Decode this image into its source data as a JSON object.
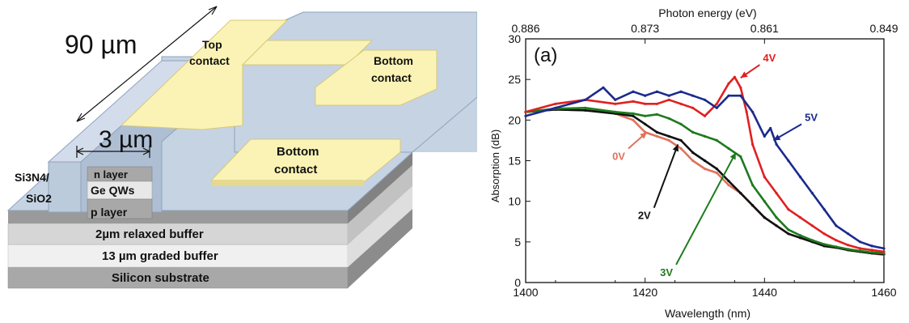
{
  "device": {
    "length_label": "90 µm",
    "width_label": "3 µm",
    "top_contact": [
      "Top",
      "contact"
    ],
    "bottom_contact_right": [
      "Bottom",
      "contact"
    ],
    "bottom_contact_front": [
      "Bottom",
      "contact"
    ],
    "cladding": [
      "Si3N4/",
      "SiO2"
    ],
    "n_layer": "n layer",
    "qw_layer": "Ge QWs",
    "p_layer": "p layer",
    "relaxed_buffer": "2µm relaxed buffer",
    "graded_buffer": "13 µm graded buffer",
    "substrate": "Silicon substrate",
    "colors": {
      "cladding": "#c6d3e3",
      "contact": "#fbf3b5",
      "dark_layer": "#9a9a9a"
    }
  },
  "chart_data": {
    "type": "line",
    "panel_label": "(a)",
    "xlabel": "Wavelength (nm)",
    "ylabel": "Absorption (dB)",
    "top_xlabel": "Photon energy (eV)",
    "xlim": [
      1400,
      1460
    ],
    "ylim": [
      0,
      30
    ],
    "x_ticks": [
      1400,
      1420,
      1440,
      1460
    ],
    "y_ticks": [
      0,
      5,
      10,
      15,
      20,
      25,
      30
    ],
    "top_ticks": [
      {
        "x": 1400,
        "label": "0.886"
      },
      {
        "x": 1420,
        "label": "0.873"
      },
      {
        "x": 1440,
        "label": "0.861"
      },
      {
        "x": 1460,
        "label": "0.849"
      }
    ],
    "series": [
      {
        "name": "0V",
        "color": "#e0735a",
        "x": [
          1400,
          1405,
          1410,
          1415,
          1418,
          1420,
          1422,
          1424,
          1426,
          1428,
          1430,
          1432,
          1434,
          1436,
          1438,
          1440,
          1442,
          1444,
          1446,
          1448,
          1450,
          1452,
          1454,
          1456,
          1458,
          1460
        ],
        "y": [
          21,
          21.3,
          21.2,
          20.8,
          20,
          18.5,
          18,
          17.5,
          16.5,
          15,
          14,
          13.5,
          12,
          11,
          9.5,
          8,
          7,
          6,
          5.5,
          5,
          4.5,
          4.3,
          4,
          3.8,
          3.6,
          3.4
        ]
      },
      {
        "name": "2V",
        "color": "#111111",
        "x": [
          1400,
          1405,
          1410,
          1415,
          1418,
          1420,
          1422,
          1424,
          1426,
          1428,
          1430,
          1432,
          1434,
          1436,
          1438,
          1440,
          1442,
          1444,
          1446,
          1448,
          1450,
          1452,
          1454,
          1456,
          1458,
          1460
        ],
        "y": [
          21,
          21.3,
          21.2,
          20.8,
          20.5,
          19.5,
          18.5,
          18,
          17.5,
          16,
          15,
          14,
          12.5,
          11,
          9.5,
          8,
          7,
          6,
          5.5,
          5,
          4.5,
          4.3,
          4,
          3.8,
          3.6,
          3.5
        ]
      },
      {
        "name": "3V",
        "color": "#1e7a1e",
        "x": [
          1400,
          1405,
          1410,
          1415,
          1418,
          1420,
          1422,
          1424,
          1426,
          1428,
          1430,
          1432,
          1434,
          1436,
          1438,
          1440,
          1442,
          1444,
          1446,
          1448,
          1450,
          1452,
          1454,
          1456,
          1458,
          1460
        ],
        "y": [
          21,
          21.4,
          21.5,
          21,
          20.8,
          20.5,
          20.7,
          20.2,
          19.5,
          18.5,
          18,
          17.5,
          16.5,
          15.5,
          12,
          10,
          8,
          6.5,
          5.8,
          5.2,
          4.7,
          4.4,
          4.1,
          3.9,
          3.7,
          3.6
        ]
      },
      {
        "name": "4V",
        "color": "#e02020",
        "x": [
          1400,
          1405,
          1410,
          1415,
          1418,
          1420,
          1422,
          1424,
          1426,
          1428,
          1430,
          1432,
          1434,
          1435,
          1436,
          1437,
          1438,
          1440,
          1442,
          1444,
          1446,
          1448,
          1450,
          1452,
          1454,
          1456,
          1458,
          1460
        ],
        "y": [
          21,
          22,
          22.5,
          22,
          22.3,
          22,
          22,
          22.5,
          22,
          21.5,
          20.5,
          22,
          24.5,
          25.3,
          24,
          21,
          17,
          13,
          11,
          9,
          8,
          7,
          6,
          5.2,
          4.6,
          4.2,
          4,
          3.8
        ]
      },
      {
        "name": "5V",
        "color": "#1a2a8c",
        "x": [
          1400,
          1405,
          1410,
          1413,
          1415,
          1418,
          1420,
          1422,
          1424,
          1426,
          1428,
          1430,
          1432,
          1434,
          1436,
          1438,
          1440,
          1441,
          1442,
          1444,
          1446,
          1448,
          1450,
          1452,
          1454,
          1456,
          1458,
          1460
        ],
        "y": [
          20.5,
          21.5,
          22.5,
          24,
          22.5,
          23.5,
          23,
          23.5,
          23,
          23.5,
          23,
          22.5,
          21.5,
          23,
          23,
          21,
          18,
          19,
          17,
          15,
          13,
          11,
          9,
          7,
          6,
          5,
          4.5,
          4.2
        ]
      }
    ],
    "annotations": [
      {
        "text": "0V",
        "color": "#e0735a",
        "x": 1417.2,
        "y": 16.5,
        "tx": 1420.3,
        "ty": 18.5
      },
      {
        "text": "2V",
        "color": "#111111",
        "x": 1421.5,
        "y": 9.2,
        "tx": 1425.5,
        "ty": 17
      },
      {
        "text": "3V",
        "color": "#1e7a1e",
        "x": 1425.2,
        "y": 2.2,
        "tx": 1435.2,
        "ty": 16
      },
      {
        "text": "4V",
        "color": "#e02020",
        "x": 1439.2,
        "y": 26.8,
        "tx": 1436.0,
        "ty": 25.2
      },
      {
        "text": "5V",
        "color": "#1a2a8c",
        "x": 1446.2,
        "y": 19.5,
        "tx": 1441.5,
        "ty": 17.5
      }
    ]
  }
}
